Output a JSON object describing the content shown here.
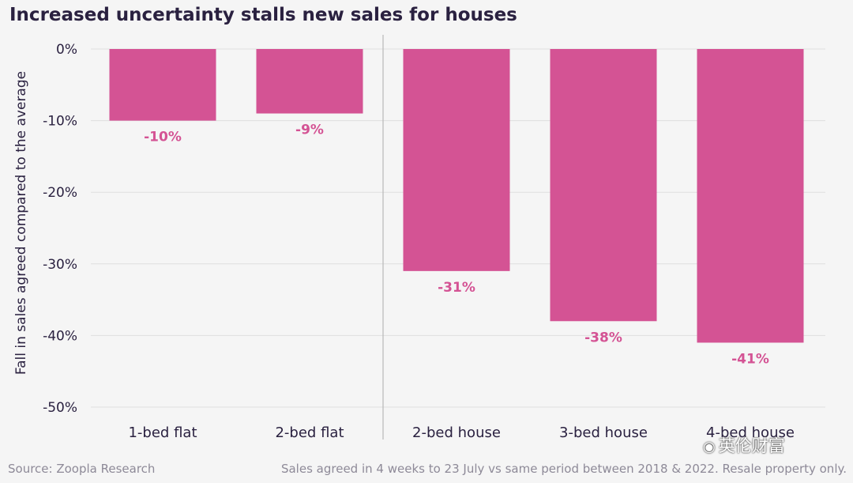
{
  "header": {
    "title": "Increased uncertainty stalls new sales for houses"
  },
  "chart_data": {
    "type": "bar",
    "title": "Increased uncertainty stalls new sales for houses",
    "xlabel": "",
    "ylabel": "Fall in sales agreed compared to the average",
    "categories": [
      "1-bed flat",
      "2-bed flat",
      "2-bed house",
      "3-bed house",
      "4-bed house"
    ],
    "values": [
      -10,
      -9,
      -31,
      -38,
      -41
    ],
    "value_labels": [
      "-10%",
      "-9%",
      "-31%",
      "-38%",
      "-41%"
    ],
    "ylim": [
      -50,
      0
    ],
    "yticks": [
      0,
      -10,
      -20,
      -30,
      -40,
      -50
    ],
    "ytick_labels": [
      "0%",
      "-10%",
      "-20%",
      "-30%",
      "-40%",
      "-50%"
    ],
    "grid": true,
    "divider_after_category": "2-bed flat",
    "colors": {
      "bar": "#d45394",
      "label": "#d45394",
      "axis_text": "#2a2140",
      "grid": "#dedede",
      "divider": "#b8b8b8"
    }
  },
  "footer": {
    "source": "Source: Zoopla Research",
    "note": "Sales agreed in 4 weeks to 23 July vs same period between 2018 & 2022. Resale property only."
  },
  "watermark": {
    "icon": "wechat-icon",
    "text": "英伦财富"
  }
}
